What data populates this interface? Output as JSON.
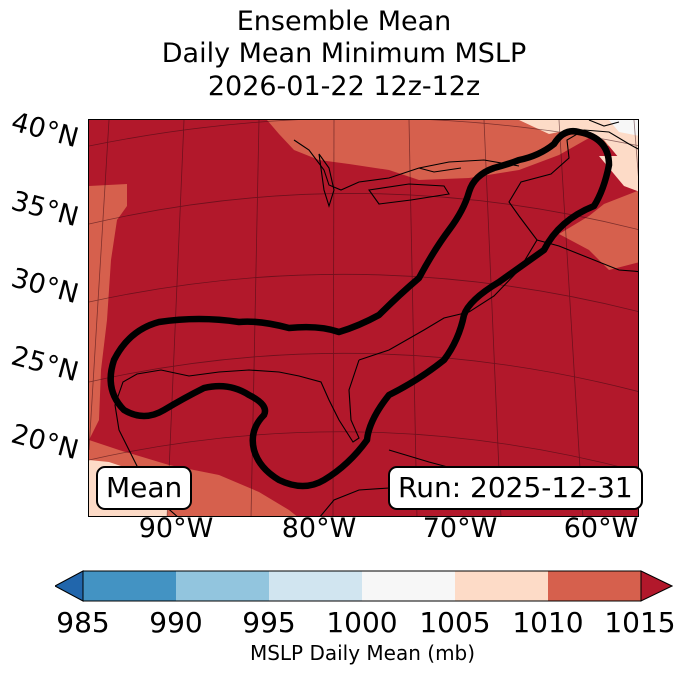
{
  "title": {
    "line1": "Ensemble Mean",
    "line2": "Daily Mean Minimum MSLP",
    "line3": "2026-01-22 12z-12z"
  },
  "map": {
    "lat_labels": [
      "40°N",
      "35°N",
      "30°N",
      "25°N",
      "20°N"
    ],
    "lon_labels": [
      "90°W",
      "80°W",
      "70°W",
      "60°W"
    ],
    "mean_badge": "Mean",
    "run_badge": "Run: 2025-12-31",
    "contour_level_mb": 1015,
    "icons": [
      "coastline-icon",
      "contour-icon"
    ]
  },
  "colorbar": {
    "ticks": [
      "985",
      "990",
      "995",
      "1000",
      "1005",
      "1010",
      "1015"
    ],
    "label": "MSLP Daily Mean (mb)",
    "colors": [
      "#2166ac",
      "#4393c3",
      "#92c5de",
      "#d1e5f0",
      "#f7f7f7",
      "#fddbc7",
      "#d6604d",
      "#b2182b"
    ]
  },
  "colors": {
    "deep_red": "#b2182b",
    "mid_red": "#d6604d",
    "light_red": "#fddbc7",
    "contour": "#000000"
  }
}
